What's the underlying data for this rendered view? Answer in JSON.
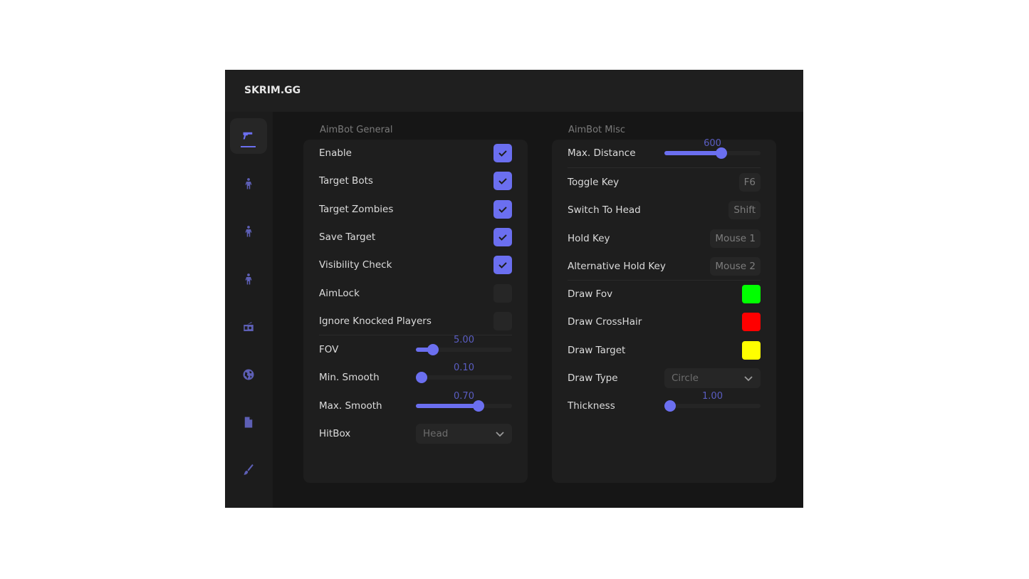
{
  "app": {
    "title": "SKRIM.GG"
  },
  "sidebar": {
    "items": [
      {
        "icon": "gun-icon",
        "active": true
      },
      {
        "icon": "person-icon"
      },
      {
        "icon": "person-icon"
      },
      {
        "icon": "person-icon"
      },
      {
        "icon": "radio-icon"
      },
      {
        "icon": "globe-icon"
      },
      {
        "icon": "file-icon"
      },
      {
        "icon": "brush-icon"
      }
    ]
  },
  "accent": "#6b6ff0",
  "general": {
    "title": "AimBot General",
    "toggles": [
      {
        "label": "Enable",
        "checked": true
      },
      {
        "label": "Target Bots",
        "checked": true
      },
      {
        "label": "Target Zombies",
        "checked": true
      },
      {
        "label": "Save Target",
        "checked": true
      },
      {
        "label": "Visibility Check",
        "checked": true
      },
      {
        "label": "AimLock",
        "checked": false
      },
      {
        "label": "Ignore Knocked Players",
        "checked": false
      }
    ],
    "sliders": [
      {
        "label": "FOV",
        "value": "5.00",
        "fraction": 0.18
      },
      {
        "label": "Min. Smooth",
        "value": "0.10",
        "fraction": 0.0
      },
      {
        "label": "Max. Smooth",
        "value": "0.70",
        "fraction": 0.65
      }
    ],
    "hitbox": {
      "label": "HitBox",
      "value": "Head"
    }
  },
  "misc": {
    "title": "AimBot Misc",
    "max_distance": {
      "label": "Max. Distance",
      "value": "600",
      "fraction": 0.59
    },
    "keys": [
      {
        "label": "Toggle Key",
        "value": "F6"
      },
      {
        "label": "Switch To Head",
        "value": "Shift"
      },
      {
        "label": "Hold Key",
        "value": "Mouse 1"
      },
      {
        "label": "Alternative Hold Key",
        "value": "Mouse 2"
      }
    ],
    "colors": [
      {
        "label": "Draw Fov",
        "color": "#00ff00"
      },
      {
        "label": "Draw CrossHair",
        "color": "#ff0000"
      },
      {
        "label": "Draw Target",
        "color": "#ffff00"
      }
    ],
    "draw_type": {
      "label": "Draw Type",
      "value": "Circle"
    },
    "thickness": {
      "label": "Thickness",
      "value": "1.00",
      "fraction": 0.06
    }
  }
}
